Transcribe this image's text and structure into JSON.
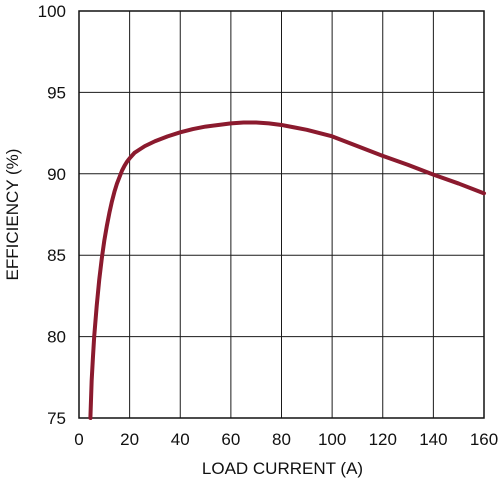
{
  "chart_data": {
    "type": "line",
    "title": "",
    "xlabel": "LOAD CURRENT (A)",
    "ylabel": "EFFICIENCY (%)",
    "xlim": [
      0,
      160
    ],
    "ylim": [
      75,
      100
    ],
    "xticks": [
      0,
      20,
      40,
      60,
      80,
      100,
      120,
      140,
      160
    ],
    "yticks": [
      75,
      80,
      85,
      90,
      95,
      100
    ],
    "grid": true,
    "line_color": "#8b1a2e",
    "series": [
      {
        "x": [
          4.5,
          5,
          5.5,
          6,
          7,
          8,
          9,
          10,
          11,
          12,
          13,
          14,
          15,
          16,
          17,
          18,
          19,
          20,
          22,
          24,
          26,
          30,
          35,
          40,
          45,
          50,
          55,
          60,
          65,
          70,
          75,
          80,
          85,
          90,
          95,
          100,
          110,
          120,
          130,
          140,
          150,
          160
        ],
        "y": [
          75.0,
          77.3,
          78.7,
          80.0,
          81.9,
          83.5,
          84.8,
          85.9,
          86.8,
          87.6,
          88.3,
          88.9,
          89.4,
          89.8,
          90.2,
          90.5,
          90.75,
          90.95,
          91.3,
          91.5,
          91.7,
          92.0,
          92.3,
          92.55,
          92.75,
          92.9,
          93.0,
          93.1,
          93.15,
          93.15,
          93.1,
          93.0,
          92.85,
          92.7,
          92.5,
          92.3,
          91.7,
          91.1,
          90.55,
          89.95,
          89.4,
          88.8
        ]
      }
    ]
  }
}
